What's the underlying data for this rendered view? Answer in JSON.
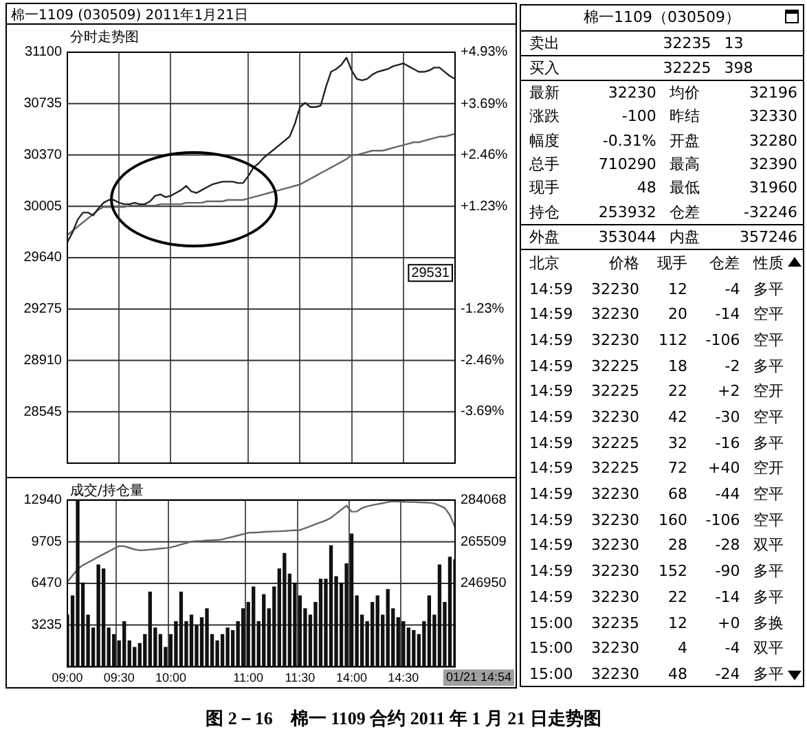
{
  "chart_data": [
    {
      "type": "line",
      "title": "棉一1109 (030509) 2011年1月21日",
      "subtitle": "分时走势图",
      "marker": "none",
      "grid": true,
      "tick_labels": "y",
      "categories": [
        null,
        null,
        null,
        null,
        null,
        null,
        null,
        null,
        null,
        null,
        null,
        null,
        null,
        null,
        null,
        null,
        null,
        null,
        null,
        null,
        null,
        null,
        null,
        null,
        null,
        null,
        null,
        null,
        null,
        null,
        null,
        null,
        null,
        null,
        null,
        null,
        null,
        null,
        null,
        null,
        null,
        null,
        null,
        null,
        null,
        null,
        null,
        null,
        null,
        null,
        null,
        null,
        null,
        null,
        null,
        null,
        null,
        null,
        null,
        null,
        null,
        null,
        null,
        null,
        null,
        null,
        null,
        null,
        null,
        null,
        null,
        null,
        null,
        null,
        null,
        null
      ],
      "ylim": [
        28180,
        31100
      ],
      "yticks": [
        28545,
        28910,
        29275,
        29640,
        30005,
        30370,
        30735,
        31100
      ],
      "y2lim": [
        -4.93,
        4.93
      ],
      "y2ticks": [
        {
          "value": -3.69,
          "label": "-3.69%"
        },
        {
          "value": -2.46,
          "label": "-2.46%"
        },
        {
          "value": -1.23,
          "label": "-1.23%"
        },
        {
          "value": 1.23,
          "label": "+1.23%"
        },
        {
          "value": 2.46,
          "label": "+2.46%"
        },
        {
          "value": 3.69,
          "label": "+3.69%"
        },
        {
          "value": 4.93,
          "label": "+4.93%"
        }
      ],
      "series": [
        {
          "color": "#222222",
          "values": [
            29750,
            29820,
            29910,
            29960,
            29960,
            29940,
            29990,
            30030,
            30050,
            30050,
            30030,
            30020,
            30020,
            30030,
            30020,
            30020,
            30040,
            30080,
            30090,
            30070,
            30080,
            30100,
            30120,
            30150,
            30110,
            30100,
            30120,
            30140,
            30160,
            30170,
            30180,
            30180,
            30180,
            30170,
            30170,
            30220,
            30280,
            30310,
            30350,
            30380,
            30410,
            30440,
            30470,
            30500,
            30590,
            30710,
            30740,
            30710,
            30710,
            30720,
            30850,
            30960,
            30980,
            31010,
            31060,
            30970,
            30910,
            30900,
            30910,
            30940,
            30960,
            30970,
            30980,
            31000,
            31010,
            31020,
            31000,
            30980,
            30960,
            30960,
            30970,
            30990,
            30990,
            30960,
            30930,
            30910
          ]
        },
        {
          "color": "#666666",
          "values": [
            29800,
            29830,
            29860,
            29890,
            29920,
            29950,
            29980,
            30000,
            30000,
            30000,
            30000,
            30000,
            30010,
            30010,
            30010,
            30010,
            30010,
            30010,
            30020,
            30020,
            30020,
            30020,
            30020,
            30030,
            30030,
            30030,
            30030,
            30040,
            30040,
            30040,
            30040,
            30050,
            30050,
            30050,
            30050,
            30060,
            30070,
            30080,
            30090,
            30100,
            30110,
            30120,
            30130,
            30140,
            30150,
            30160,
            30180,
            30200,
            30220,
            30240,
            30260,
            30280,
            30300,
            30320,
            30340,
            30370,
            30370,
            30380,
            30390,
            30400,
            30400,
            30400,
            30410,
            30420,
            30430,
            30440,
            30450,
            30460,
            30460,
            30470,
            30480,
            30490,
            30500,
            30500,
            30510,
            30520
          ]
        }
      ],
      "annotations": [
        {
          "text": "29531",
          "y": 29531
        },
        "图 2－16　棉一 1109 合约 2011 年 1 月 21 日走势图"
      ]
    },
    {
      "type": "bar",
      "title": "成交/持仓量",
      "marker": "none",
      "grid": true,
      "categories": [
        "09:00",
        null,
        null,
        null,
        null,
        null,
        null,
        null,
        null,
        null,
        "09:30",
        null,
        null,
        null,
        null,
        null,
        null,
        null,
        null,
        null,
        "10:00",
        null,
        null,
        null,
        null,
        null,
        null,
        null,
        null,
        null,
        null,
        null,
        null,
        null,
        null,
        "11:00",
        null,
        null,
        null,
        null,
        null,
        null,
        null,
        null,
        null,
        "11:30",
        null,
        null,
        null,
        null,
        null,
        null,
        null,
        null,
        null,
        "14:00",
        null,
        null,
        null,
        null,
        null,
        null,
        null,
        null,
        null,
        "14:30",
        null,
        null,
        null,
        null,
        null,
        null,
        null,
        null,
        null,
        null
      ],
      "ylim": [
        0,
        12940
      ],
      "yticks": [
        3235,
        6470,
        9705,
        12940
      ],
      "y2lim": [
        209832,
        284068
      ],
      "y2ticks": [
        246950,
        265509,
        284068
      ],
      "series": [
        {
          "type": "bar",
          "color": "#111111",
          "values": [
            4000,
            5500,
            12900,
            6500,
            4000,
            3000,
            7900,
            7600,
            3000,
            2500,
            2000,
            3500,
            2000,
            1500,
            1800,
            2500,
            5800,
            3000,
            2500,
            1500,
            2500,
            3500,
            5800,
            3500,
            4000,
            3200,
            3800,
            4500,
            2500,
            2000,
            2500,
            3000,
            2800,
            3500,
            4500,
            5000,
            6200,
            3500,
            5600,
            4500,
            6200,
            7600,
            8800,
            7200,
            6500,
            5500,
            4500,
            4000,
            5000,
            6800,
            6800,
            9400,
            7000,
            6500,
            8000,
            10300,
            5500,
            4000,
            3500,
            5000,
            5500,
            4000,
            6000,
            4500,
            3800,
            3500,
            3000,
            2800,
            2500,
            3500,
            5500,
            4000,
            7900,
            5000,
            8500,
            8300
          ]
        },
        {
          "type": "line",
          "axis": "y2",
          "color": "#666666",
          "values": [
            247600,
            250500,
            253300,
            255100,
            256300,
            257500,
            258800,
            260000,
            261200,
            262400,
            263600,
            263500,
            262800,
            262100,
            261700,
            261800,
            262000,
            262200,
            262500,
            262700,
            263000,
            263600,
            264300,
            264900,
            265600,
            265800,
            265900,
            266100,
            266200,
            266300,
            266600,
            267200,
            267700,
            268300,
            268900,
            269500,
            269600,
            269700,
            269900,
            270000,
            270100,
            270200,
            270300,
            270500,
            270600,
            270700,
            271600,
            272400,
            273300,
            274200,
            275000,
            276200,
            278000,
            279800,
            281600,
            278900,
            279000,
            280500,
            281300,
            281800,
            282300,
            282700,
            283200,
            283500,
            283400,
            283300,
            283200,
            283200,
            283100,
            283000,
            282900,
            282600,
            281600,
            280600,
            277400,
            272000
          ]
        }
      ],
      "annotations": [
        "01/21 14:54"
      ]
    },
    {
      "type": "other",
      "title": "棉一1109（030509）",
      "annotations": [
        "卖出 32235 13",
        "买入 32225 398",
        "最新 32230 均价 32196",
        "涨跌 -100 昨结 32330",
        "幅度 -0.31% 开盘 32280",
        "总手 710290 最高 32390",
        "现手 48 最低 31960",
        "持仓 253932 仓差 -32246",
        "外盘 353044 内盘 357246",
        "北京 价格 现手 仓差 性质",
        "14:59 32230 12 -4 多平",
        "14:59 32230 20 -14 空平",
        "14:59 32230 112 -106 空平",
        "14:59 32225 18 -2 多平",
        "14:59 32225 22 +2 空开",
        "14:59 32230 42 -30 空平",
        "14:59 32225 32 -16 多平",
        "14:59 32225 72 +40 空开",
        "14:59 32230 68 -44 空平",
        "14:59 32230 160 -106 空平",
        "14:59 32230 28 -28 双平",
        "14:59 32230 152 -90 多平",
        "14:59 32230 22 -14 多平",
        "15:00 32235 12 +0 多换",
        "15:00 32230 4 -4 双平",
        "15:00 32230 48 -24 多平"
      ]
    }
  ]
}
